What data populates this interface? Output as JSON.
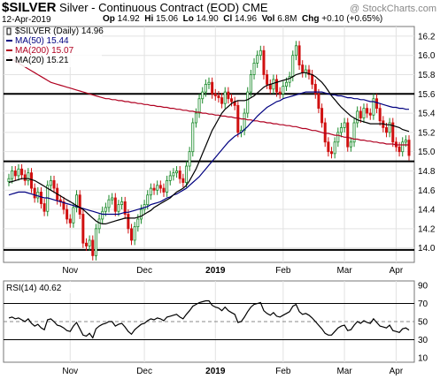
{
  "header": {
    "symbol": "$SILVER",
    "description": "Silver - Continuous Contract (EOD)",
    "exchange": "CME",
    "watermark": "@ StockCharts.com",
    "date": "12-Apr-2019",
    "open_label": "Op",
    "open": "14.92",
    "high_label": "Hi",
    "high": "15.06",
    "low_label": "Lo",
    "low": "14.90",
    "close_label": "Cl",
    "close": "14.96",
    "vol_label": "Vol",
    "vol": "6.8M",
    "chg_label": "Chg",
    "chg": "+0.10 (+0.65%)"
  },
  "chart_data": [
    {
      "type": "candlestick",
      "legend": [
        {
          "name": "$SILVER (Daily) 14.96",
          "color": "#000000"
        },
        {
          "name": "MA(50) 15.44",
          "color": "#000080"
        },
        {
          "name": "MA(200) 15.07",
          "color": "#b00020"
        },
        {
          "name": "MA(20) 15.21",
          "color": "#000000"
        }
      ],
      "y_ticks": [
        "16.2",
        "16.0",
        "15.8",
        "15.6",
        "15.4",
        "15.2",
        "15.0",
        "14.8",
        "14.6",
        "14.4",
        "14.2",
        "14.0"
      ],
      "ylim": [
        13.85,
        16.3
      ],
      "x_ticks": [
        "Nov",
        "Dec",
        "2019",
        "Feb",
        "Mar",
        "Apr"
      ],
      "horizontal_lines": [
        15.6,
        14.9,
        13.98
      ],
      "closes": [
        14.72,
        14.8,
        14.75,
        14.82,
        14.76,
        14.7,
        14.78,
        14.62,
        14.52,
        14.58,
        14.46,
        14.38,
        14.65,
        14.7,
        14.62,
        14.5,
        14.48,
        14.4,
        14.3,
        14.26,
        14.42,
        14.55,
        14.35,
        14.05,
        14.02,
        14.08,
        13.92,
        14.2,
        14.3,
        14.38,
        14.42,
        14.5,
        14.52,
        14.38,
        14.45,
        14.48,
        14.35,
        14.2,
        14.08,
        14.22,
        14.3,
        14.4,
        14.45,
        14.55,
        14.62,
        14.6,
        14.65,
        14.62,
        14.58,
        14.7,
        14.75,
        14.78,
        14.8,
        14.72,
        14.68,
        14.85,
        15.0,
        15.3,
        15.4,
        15.55,
        15.62,
        15.7,
        15.72,
        15.6,
        15.58,
        15.56,
        15.5,
        15.62,
        15.55,
        15.52,
        15.48,
        15.2,
        15.22,
        15.4,
        15.62,
        15.8,
        15.92,
        16.0,
        16.05,
        15.8,
        15.7,
        15.65,
        15.75,
        15.62,
        15.6,
        15.68,
        15.72,
        15.78,
        16.0,
        16.1,
        15.9,
        15.82,
        15.85,
        15.8,
        15.7,
        15.6,
        15.45,
        15.3,
        15.1,
        15.0,
        14.98,
        15.1,
        15.2,
        15.25,
        15.3,
        15.05,
        15.1,
        15.3,
        15.42,
        15.35,
        15.45,
        15.4,
        15.38,
        15.55,
        15.45,
        15.32,
        15.25,
        15.2,
        15.3,
        15.1,
        15.05,
        15.0,
        15.1,
        15.12,
        14.96
      ],
      "ma50": [
        14.55,
        14.56,
        14.57,
        14.58,
        14.58,
        14.58,
        14.57,
        14.56,
        14.55,
        14.54,
        14.53,
        14.52,
        14.52,
        14.51,
        14.5,
        14.49,
        14.48,
        14.47,
        14.46,
        14.45,
        14.44,
        14.43,
        14.42,
        14.41,
        14.4,
        14.39,
        14.38,
        14.37,
        14.36,
        14.35,
        14.35,
        14.35,
        14.35,
        14.35,
        14.35,
        14.36,
        14.37,
        14.37,
        14.38,
        14.39,
        14.4,
        14.41,
        14.42,
        14.43,
        14.45,
        14.46,
        14.47,
        14.48,
        14.5,
        14.52,
        14.53,
        14.55,
        14.56,
        14.58,
        14.6,
        14.62,
        14.65,
        14.68,
        14.71,
        14.74,
        14.78,
        14.82,
        14.86,
        14.9,
        14.94,
        14.98,
        15.02,
        15.06,
        15.1,
        15.13,
        15.16,
        15.18,
        15.2,
        15.23,
        15.26,
        15.3,
        15.33,
        15.37,
        15.4,
        15.43,
        15.46,
        15.48,
        15.5,
        15.52,
        15.53,
        15.55,
        15.56,
        15.57,
        15.58,
        15.59,
        15.6,
        15.61,
        15.62,
        15.62,
        15.62,
        15.62,
        15.62,
        15.62,
        15.61,
        15.6,
        15.59,
        15.59,
        15.58,
        15.58,
        15.57,
        15.56,
        15.56,
        15.55,
        15.55,
        15.54,
        15.54,
        15.53,
        15.52,
        15.52,
        15.51,
        15.5,
        15.49,
        15.48,
        15.47,
        15.46,
        15.46,
        15.45,
        15.45,
        15.44,
        15.44
      ],
      "ma200": [
        15.98,
        15.96,
        15.94,
        15.92,
        15.9,
        15.88,
        15.86,
        15.84,
        15.82,
        15.8,
        15.78,
        15.76,
        15.74,
        15.72,
        15.71,
        15.7,
        15.69,
        15.68,
        15.67,
        15.66,
        15.65,
        15.64,
        15.63,
        15.62,
        15.61,
        15.6,
        15.59,
        15.58,
        15.57,
        15.56,
        15.55,
        15.55,
        15.54,
        15.54,
        15.53,
        15.53,
        15.52,
        15.52,
        15.51,
        15.51,
        15.5,
        15.5,
        15.49,
        15.49,
        15.48,
        15.48,
        15.47,
        15.47,
        15.46,
        15.46,
        15.45,
        15.45,
        15.44,
        15.44,
        15.43,
        15.43,
        15.42,
        15.42,
        15.41,
        15.41,
        15.4,
        15.4,
        15.39,
        15.39,
        15.38,
        15.38,
        15.37,
        15.37,
        15.36,
        15.36,
        15.35,
        15.35,
        15.34,
        15.34,
        15.33,
        15.33,
        15.32,
        15.32,
        15.31,
        15.31,
        15.3,
        15.3,
        15.29,
        15.29,
        15.28,
        15.28,
        15.27,
        15.27,
        15.26,
        15.26,
        15.25,
        15.24,
        15.24,
        15.23,
        15.22,
        15.22,
        15.21,
        15.2,
        15.19,
        15.19,
        15.18,
        15.17,
        15.17,
        15.16,
        15.15,
        15.15,
        15.14,
        15.13,
        15.13,
        15.12,
        15.12,
        15.11,
        15.11,
        15.1,
        15.1,
        15.09,
        15.09,
        15.08,
        15.08,
        15.08,
        15.07,
        15.07,
        15.07,
        15.07,
        15.07
      ],
      "ma20": [
        14.68,
        14.69,
        14.7,
        14.71,
        14.72,
        14.72,
        14.72,
        14.71,
        14.7,
        14.68,
        14.66,
        14.64,
        14.62,
        14.6,
        14.58,
        14.56,
        14.54,
        14.52,
        14.5,
        14.48,
        14.46,
        14.44,
        14.42,
        14.4,
        14.37,
        14.34,
        14.31,
        14.28,
        14.26,
        14.25,
        14.25,
        14.26,
        14.27,
        14.28,
        14.29,
        14.3,
        14.31,
        14.31,
        14.31,
        14.31,
        14.32,
        14.33,
        14.35,
        14.37,
        14.39,
        14.42,
        14.44,
        14.46,
        14.48,
        14.5,
        14.52,
        14.55,
        14.58,
        14.6,
        14.62,
        14.65,
        14.7,
        14.76,
        14.82,
        14.9,
        14.98,
        15.06,
        15.14,
        15.22,
        15.28,
        15.34,
        15.4,
        15.44,
        15.47,
        15.5,
        15.52,
        15.53,
        15.53,
        15.53,
        15.54,
        15.56,
        15.58,
        15.61,
        15.64,
        15.67,
        15.69,
        15.7,
        15.71,
        15.72,
        15.73,
        15.74,
        15.75,
        15.76,
        15.78,
        15.8,
        15.81,
        15.82,
        15.82,
        15.81,
        15.8,
        15.78,
        15.75,
        15.72,
        15.68,
        15.63,
        15.58,
        15.54,
        15.5,
        15.46,
        15.43,
        15.4,
        15.37,
        15.35,
        15.33,
        15.32,
        15.31,
        15.3,
        15.29,
        15.29,
        15.29,
        15.29,
        15.29,
        15.28,
        15.28,
        15.27,
        15.26,
        15.25,
        15.23,
        15.22,
        15.21
      ]
    },
    {
      "type": "line",
      "legend": [
        {
          "name": "RSI(14) 40.62",
          "color": "#000000"
        }
      ],
      "y_ticks": [
        "90",
        "70",
        "50",
        "30",
        "10"
      ],
      "ylim": [
        5,
        95
      ],
      "reference_lines": [
        70,
        50,
        30
      ],
      "x_ticks": [
        "Nov",
        "Dec",
        "2019",
        "Feb",
        "Mar",
        "Apr"
      ],
      "values": [
        54,
        55,
        53,
        54,
        52,
        50,
        53,
        48,
        45,
        47,
        43,
        41,
        52,
        53,
        50,
        46,
        45,
        43,
        40,
        39,
        45,
        49,
        42,
        35,
        34,
        37,
        32,
        42,
        45,
        47,
        48,
        50,
        50,
        45,
        47,
        48,
        44,
        39,
        36,
        41,
        44,
        47,
        48,
        51,
        53,
        52,
        54,
        53,
        51,
        55,
        56,
        57,
        58,
        55,
        53,
        58,
        62,
        67,
        69,
        71,
        72,
        73,
        73,
        68,
        66,
        65,
        62,
        66,
        62,
        60,
        58,
        49,
        50,
        55,
        61,
        66,
        69,
        70,
        71,
        62,
        59,
        57,
        60,
        56,
        55,
        57,
        59,
        61,
        67,
        69,
        61,
        58,
        59,
        57,
        54,
        50,
        46,
        42,
        37,
        35,
        35,
        39,
        43,
        45,
        46,
        40,
        41,
        46,
        50,
        48,
        51,
        49,
        48,
        53,
        49,
        45,
        44,
        43,
        46,
        40,
        39,
        38,
        42,
        43,
        40.62
      ]
    }
  ]
}
